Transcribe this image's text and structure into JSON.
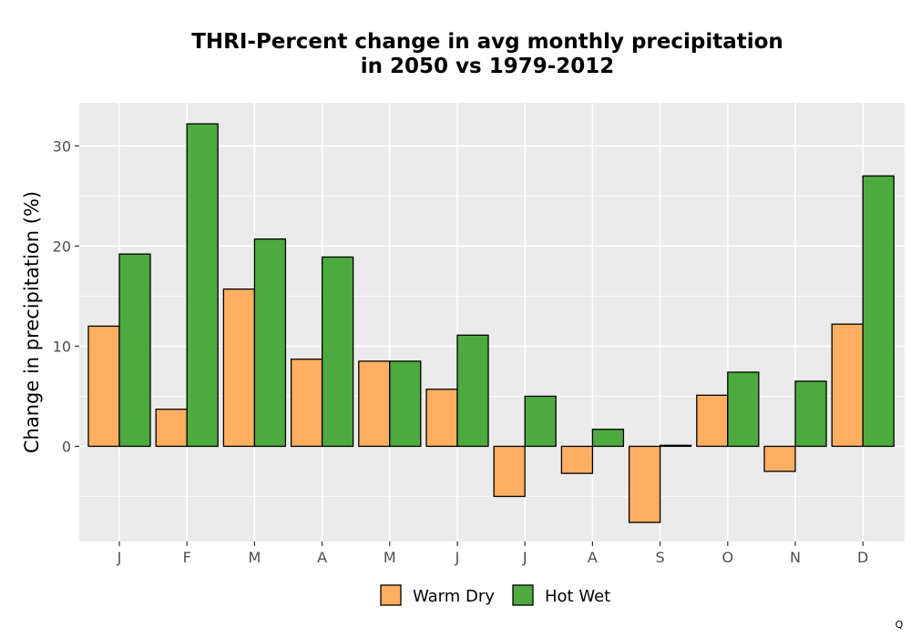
{
  "chart_data": {
    "type": "bar",
    "title_lines": [
      "THRI-Percent change in avg monthly precipitation",
      "in 2050 vs 1979-2012"
    ],
    "xlabel": "",
    "ylabel": "Change in precipitation (%)",
    "categories": [
      "J",
      "F",
      "M",
      "A",
      "M",
      "J",
      "J",
      "A",
      "S",
      "O",
      "N",
      "D"
    ],
    "series": [
      {
        "name": "Warm Dry",
        "color": "#FDAE61",
        "values": [
          12.0,
          3.7,
          15.7,
          8.7,
          8.5,
          5.7,
          -5.0,
          -2.7,
          -7.6,
          5.1,
          -2.5,
          12.2
        ]
      },
      {
        "name": "Hot Wet",
        "color": "#4DAA3F",
        "values": [
          19.2,
          32.2,
          20.7,
          18.9,
          8.5,
          11.1,
          5.0,
          1.7,
          0.1,
          7.4,
          6.5,
          27.0
        ]
      }
    ],
    "ylim": [
      -9.5,
      34.3
    ],
    "yticks": [
      0,
      10,
      20,
      30
    ],
    "grid": true,
    "legend_position": "bottom",
    "panel_background": "#EBEBEB",
    "bar_outline": "#000000"
  },
  "corner_mark": "Q"
}
